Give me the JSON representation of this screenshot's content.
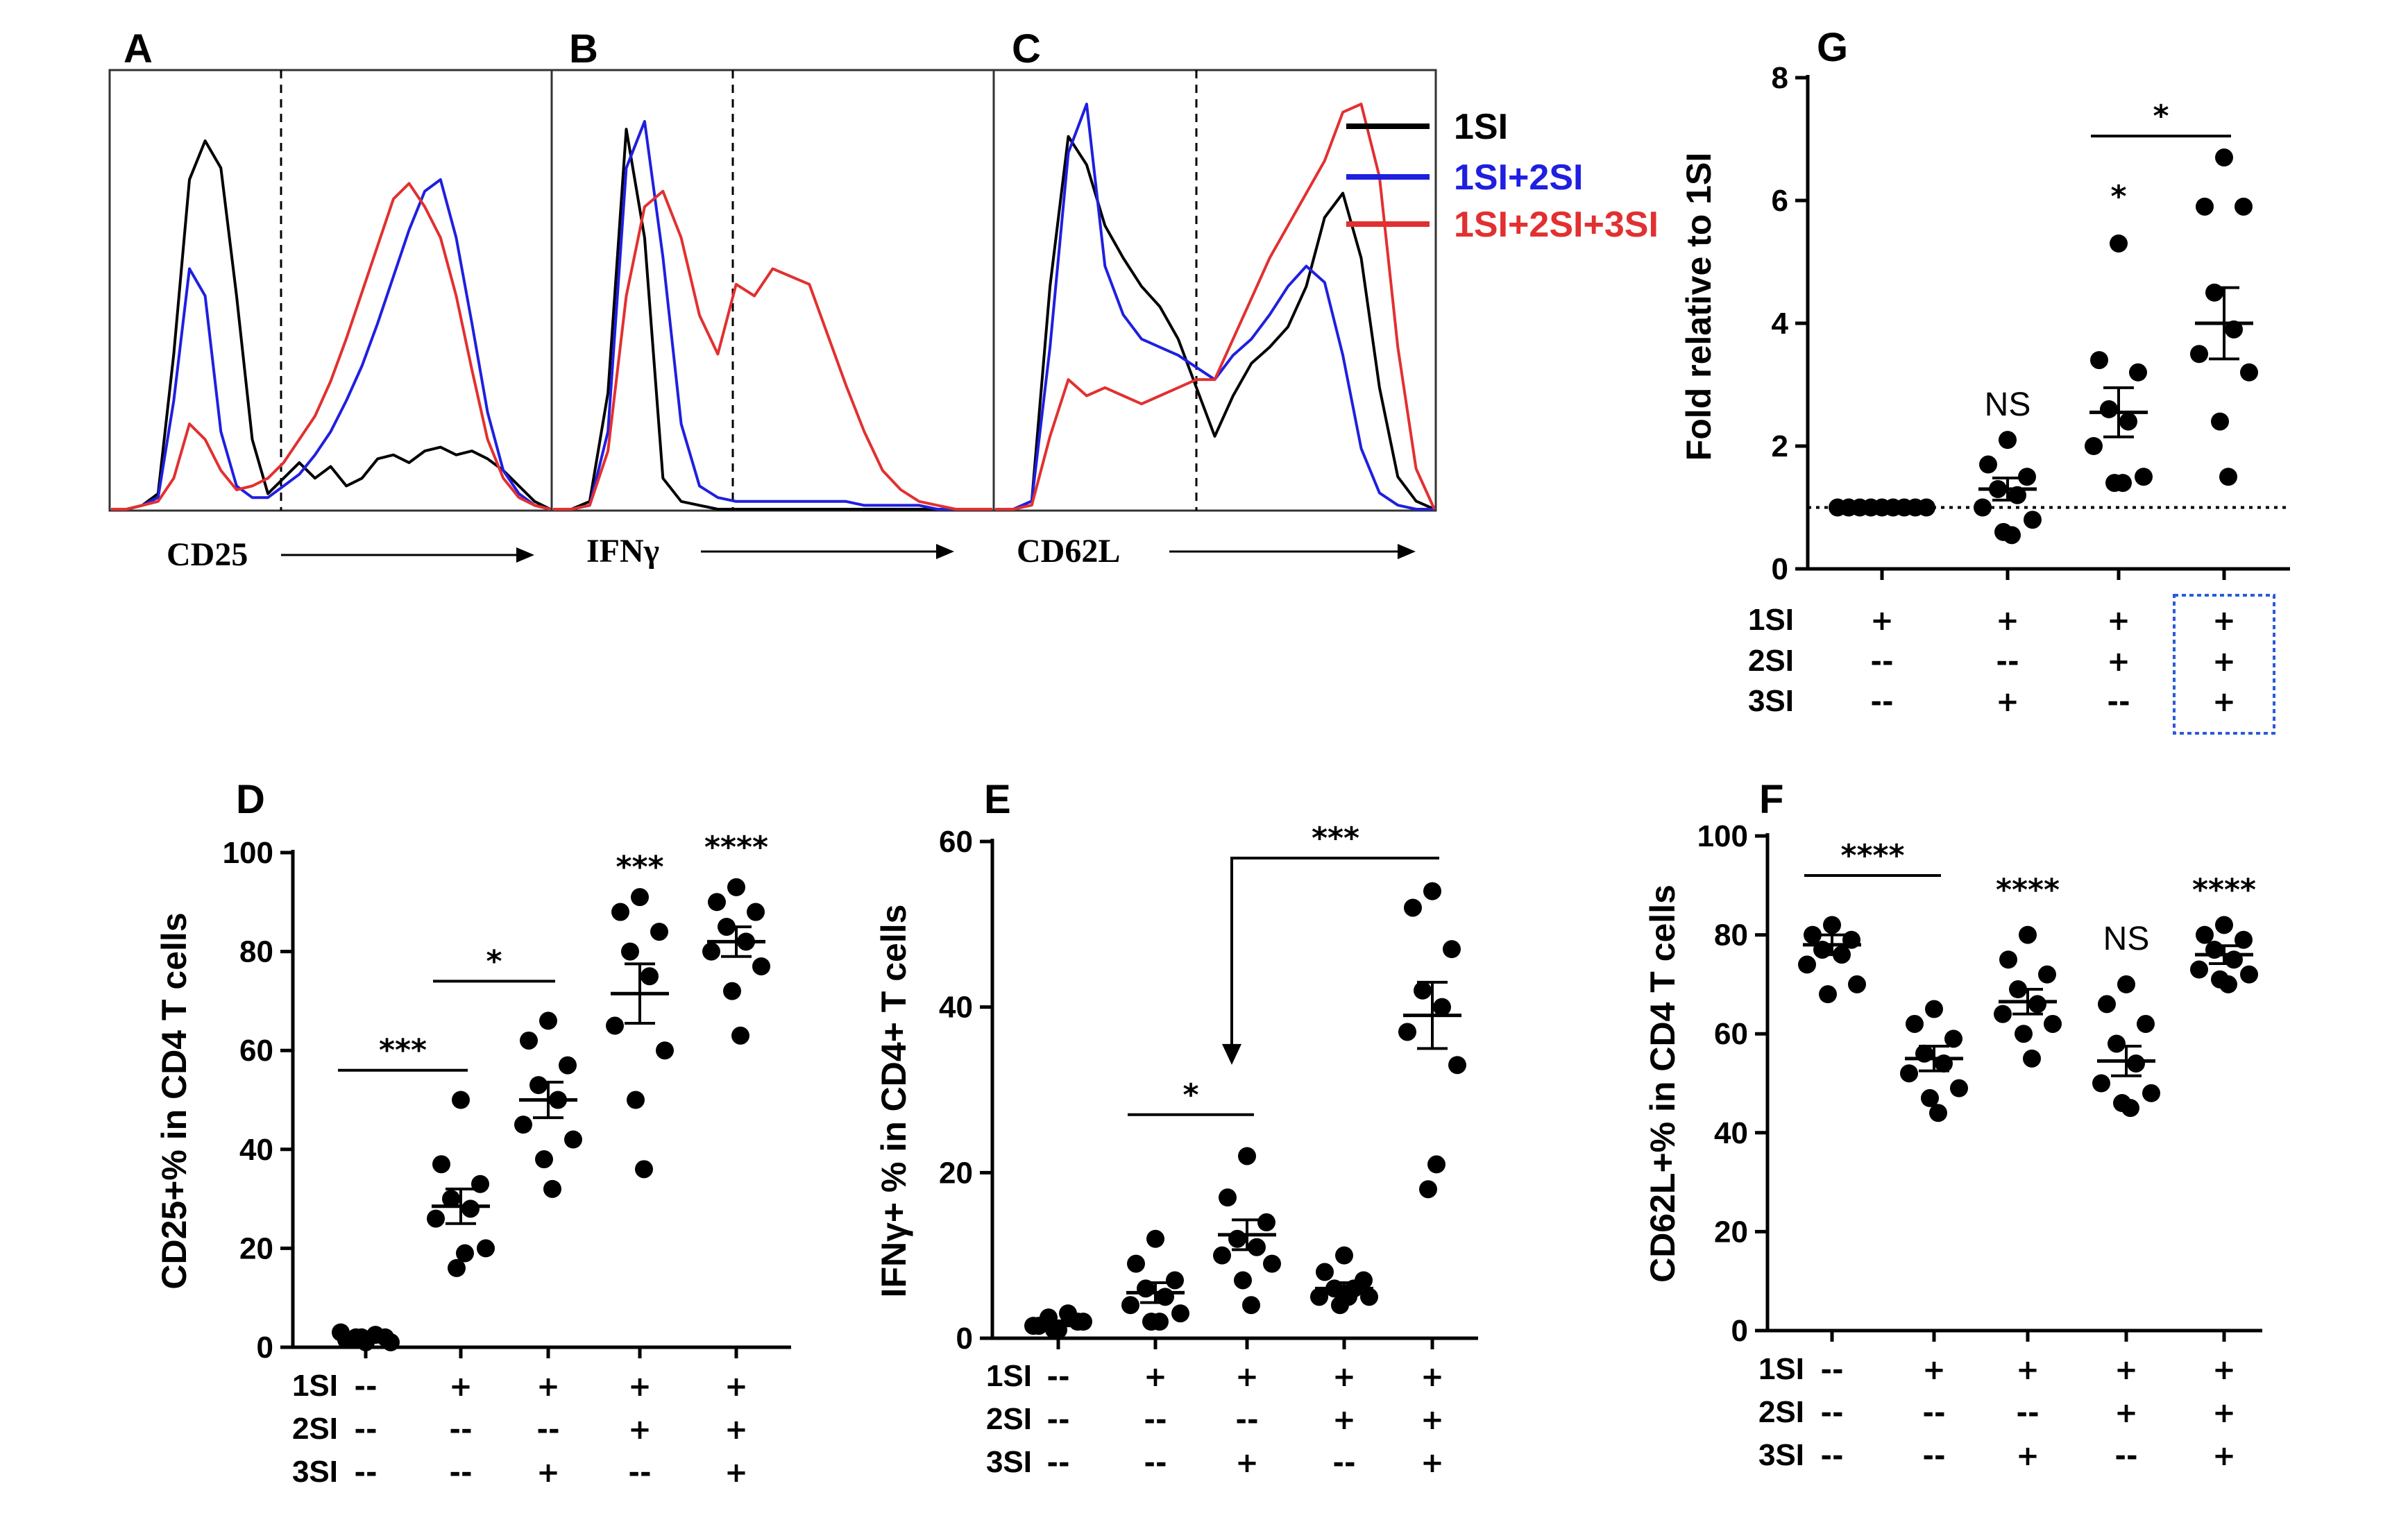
{
  "colors": {
    "1SI": "#000000",
    "1SI+2SI": "#1f1fe0",
    "1SI+2SI+3SI": "#e23030",
    "box": "#2a5bd7"
  },
  "chart_data": [
    {
      "panel": "A",
      "type": "line",
      "chart": "flow histogram",
      "xlabel": "CD25",
      "legend": [
        "1SI",
        "1SI+2SI",
        "1SI+2SI+3SI"
      ],
      "series": [
        {
          "name": "1SI",
          "values": [
            0,
            0,
            1,
            4,
            40,
            85,
            95,
            88,
            55,
            18,
            4,
            8,
            12,
            8,
            11,
            6,
            8,
            13,
            14,
            12,
            15,
            16,
            14,
            15,
            13,
            10,
            6,
            2,
            0
          ]
        },
        {
          "name": "1SI+2SI",
          "values": [
            0,
            0,
            1,
            3,
            28,
            62,
            55,
            20,
            6,
            3,
            3,
            6,
            9,
            14,
            20,
            28,
            37,
            48,
            60,
            72,
            82,
            85,
            70,
            48,
            25,
            10,
            4,
            1,
            0
          ]
        },
        {
          "name": "1SI+2SI+3SI",
          "values": [
            0,
            0,
            1,
            2,
            8,
            22,
            18,
            10,
            5,
            6,
            8,
            12,
            18,
            24,
            33,
            44,
            56,
            68,
            80,
            84,
            78,
            70,
            55,
            36,
            18,
            8,
            3,
            1,
            0
          ]
        }
      ]
    },
    {
      "panel": "B",
      "type": "line",
      "chart": "flow histogram",
      "xlabel": "IFNγ",
      "series": [
        {
          "name": "1SI",
          "values": [
            0,
            0,
            2,
            30,
            98,
            70,
            8,
            2,
            1,
            0,
            0,
            0,
            0,
            0,
            0,
            0,
            0,
            0,
            0,
            0,
            0,
            0,
            0,
            0,
            0
          ]
        },
        {
          "name": "1SI+2SI",
          "values": [
            0,
            0,
            1,
            20,
            88,
            100,
            65,
            22,
            6,
            3,
            2,
            2,
            2,
            2,
            2,
            2,
            2,
            1,
            1,
            1,
            1,
            0,
            0,
            0,
            0
          ]
        },
        {
          "name": "1SI+2SI+3SI",
          "values": [
            0,
            0,
            1,
            15,
            55,
            78,
            82,
            70,
            50,
            40,
            58,
            55,
            62,
            60,
            58,
            45,
            32,
            20,
            10,
            5,
            2,
            1,
            0,
            0,
            0
          ]
        }
      ]
    },
    {
      "panel": "C",
      "type": "line",
      "chart": "flow histogram",
      "xlabel": "CD62L",
      "series": [
        {
          "name": "1SI",
          "values": [
            0,
            0,
            2,
            55,
            92,
            85,
            70,
            62,
            55,
            50,
            42,
            30,
            18,
            28,
            36,
            40,
            45,
            55,
            72,
            78,
            62,
            30,
            8,
            2,
            0
          ]
        },
        {
          "name": "1SI+2SI",
          "values": [
            0,
            0,
            2,
            40,
            88,
            100,
            60,
            48,
            42,
            40,
            38,
            35,
            32,
            38,
            42,
            48,
            55,
            60,
            56,
            38,
            15,
            4,
            1,
            0,
            0
          ]
        },
        {
          "name": "1SI+2SI+3SI",
          "values": [
            0,
            0,
            1,
            18,
            32,
            28,
            30,
            28,
            26,
            28,
            30,
            32,
            32,
            42,
            52,
            62,
            70,
            78,
            86,
            98,
            100,
            82,
            40,
            10,
            0
          ]
        }
      ]
    },
    {
      "panel": "D",
      "type": "scatter",
      "ylabel": "CD25+% in CD4 T cells",
      "ylim": [
        0,
        100
      ],
      "yticks": [
        "0",
        "20",
        "40",
        "60",
        "80",
        "100"
      ],
      "condition_rows": [
        {
          "label": "1SI",
          "cells": [
            "--",
            "+",
            "+",
            "+",
            "+"
          ]
        },
        {
          "label": "2SI",
          "cells": [
            "--",
            "--",
            "--",
            "+",
            "+"
          ]
        },
        {
          "label": "3SI",
          "cells": [
            "--",
            "--",
            "+",
            "--",
            "+"
          ]
        }
      ],
      "groups": [
        {
          "points": [
            1,
            1.5,
            2,
            2,
            2.5,
            3,
            1,
            2
          ],
          "mean": 1.8,
          "sem": 0.3
        },
        {
          "points": [
            50,
            37,
            33,
            30,
            28,
            26,
            20,
            16,
            19
          ],
          "mean": 28.5,
          "sem": 3.5
        },
        {
          "points": [
            66,
            62,
            57,
            53,
            50,
            45,
            42,
            38,
            32
          ],
          "mean": 50,
          "sem": 3.6
        },
        {
          "points": [
            91,
            88,
            84,
            80,
            75,
            65,
            60,
            50,
            36
          ],
          "mean": 71.5,
          "sem": 6
        },
        {
          "points": [
            93,
            90,
            88,
            85,
            82,
            80,
            77,
            72,
            63
          ],
          "mean": 82,
          "sem": 3
        }
      ],
      "significance": [
        {
          "label": "***",
          "from": 0,
          "to": 1,
          "y": 56
        },
        {
          "label": "*",
          "from": 1,
          "to": 2,
          "y": 74
        },
        {
          "label": "***",
          "group": 3,
          "y": 95
        },
        {
          "label": "****",
          "group": 4,
          "y": 99
        }
      ]
    },
    {
      "panel": "E",
      "type": "scatter",
      "ylabel": "IFNγ+ % in CD4+ T cells",
      "ylim": [
        0,
        60
      ],
      "yticks": [
        "0",
        "20",
        "40",
        "60"
      ],
      "condition_rows": [
        {
          "label": "1SI",
          "cells": [
            "--",
            "+",
            "+",
            "+",
            "+"
          ]
        },
        {
          "label": "2SI",
          "cells": [
            "--",
            "--",
            "--",
            "+",
            "+"
          ]
        },
        {
          "label": "3SI",
          "cells": [
            "--",
            "--",
            "+",
            "--",
            "+"
          ]
        }
      ],
      "groups": [
        {
          "points": [
            1,
            1.5,
            2,
            2.5,
            3,
            1.5,
            2,
            1
          ],
          "mean": 1.8,
          "sem": 0.3
        },
        {
          "points": [
            12,
            9,
            7,
            6,
            5,
            4,
            3,
            2,
            2
          ],
          "mean": 5.5,
          "sem": 1.2
        },
        {
          "points": [
            22,
            17,
            14,
            12,
            11,
            10,
            9,
            7,
            4
          ],
          "mean": 12.5,
          "sem": 1.8
        },
        {
          "points": [
            10,
            8,
            7,
            6,
            6,
            5,
            5,
            4,
            5
          ],
          "mean": 6,
          "sem": 0.7
        },
        {
          "points": [
            54,
            52,
            47,
            42,
            40,
            37,
            33,
            18,
            21
          ],
          "mean": 39,
          "sem": 4
        }
      ],
      "significance": [
        {
          "label": "*",
          "from": 1,
          "to": 2,
          "y": 27
        },
        {
          "label": "***",
          "from": 2,
          "to": 4,
          "y": 58,
          "arrow_to_group": 2
        }
      ]
    },
    {
      "panel": "F",
      "type": "scatter",
      "ylabel": "CD62L+% in CD4 T cells",
      "ylim": [
        0,
        100
      ],
      "yticks": [
        "0",
        "20",
        "40",
        "60",
        "80",
        "100"
      ],
      "condition_rows": [
        {
          "label": "1SI",
          "cells": [
            "--",
            "+",
            "+",
            "+",
            "+"
          ]
        },
        {
          "label": "2SI",
          "cells": [
            "--",
            "--",
            "--",
            "+",
            "+"
          ]
        },
        {
          "label": "3SI",
          "cells": [
            "--",
            "--",
            "+",
            "--",
            "+"
          ]
        }
      ],
      "groups": [
        {
          "points": [
            82,
            80,
            79,
            77,
            76,
            74,
            70,
            68
          ],
          "mean": 78,
          "sem": 2
        },
        {
          "points": [
            65,
            62,
            59,
            56,
            54,
            52,
            49,
            47,
            44
          ],
          "mean": 55,
          "sem": 2.5
        },
        {
          "points": [
            80,
            75,
            72,
            69,
            66,
            64,
            62,
            60,
            55
          ],
          "mean": 66.5,
          "sem": 2.5
        },
        {
          "points": [
            70,
            66,
            62,
            58,
            54,
            50,
            48,
            46,
            45
          ],
          "mean": 54.5,
          "sem": 3
        },
        {
          "points": [
            82,
            80,
            79,
            77,
            75,
            73,
            72,
            71,
            70
          ],
          "mean": 76,
          "sem": 1.8
        }
      ],
      "significance": [
        {
          "label": "****",
          "from": 0,
          "to": 1,
          "y": 92
        },
        {
          "label": "****",
          "group": 2,
          "y": 87
        },
        {
          "label": "NS",
          "group": 3,
          "y": 77
        },
        {
          "label": "****",
          "group": 4,
          "y": 87
        }
      ]
    },
    {
      "panel": "G",
      "type": "scatter",
      "ylabel": "Fold relative to 1SI",
      "ylim": [
        0,
        8
      ],
      "yticks": [
        "0",
        "2",
        "4",
        "6",
        "8"
      ],
      "reference_line": 1,
      "condition_rows": [
        {
          "label": "1SI",
          "cells": [
            "+",
            "+",
            "+",
            "+"
          ]
        },
        {
          "label": "2SI",
          "cells": [
            "--",
            "--",
            "+",
            "+"
          ]
        },
        {
          "label": "3SI",
          "cells": [
            "--",
            "+",
            "--",
            "+"
          ]
        }
      ],
      "highlight_column": 3,
      "groups": [
        {
          "points": [
            1,
            1,
            1,
            1,
            1,
            1,
            1,
            1,
            1
          ],
          "mean": 1,
          "sem": 0
        },
        {
          "points": [
            2.1,
            1.7,
            1.5,
            1.3,
            1.2,
            1.0,
            0.8,
            0.6,
            0.55
          ],
          "mean": 1.3,
          "sem": 0.18
        },
        {
          "points": [
            5.3,
            3.4,
            3.2,
            2.6,
            2.4,
            2.0,
            1.5,
            1.4,
            1.4
          ],
          "mean": 2.55,
          "sem": 0.4
        },
        {
          "points": [
            6.7,
            5.9,
            5.9,
            4.5,
            3.9,
            3.5,
            3.2,
            2.4,
            1.5
          ],
          "mean": 4.0,
          "sem": 0.58
        }
      ],
      "significance": [
        {
          "label": "NS",
          "group": 1,
          "y": 2.5
        },
        {
          "label": "*",
          "group": 2,
          "y": 5.9
        },
        {
          "label": "*",
          "from": 2,
          "to": 3,
          "y": 7.05
        }
      ]
    }
  ]
}
